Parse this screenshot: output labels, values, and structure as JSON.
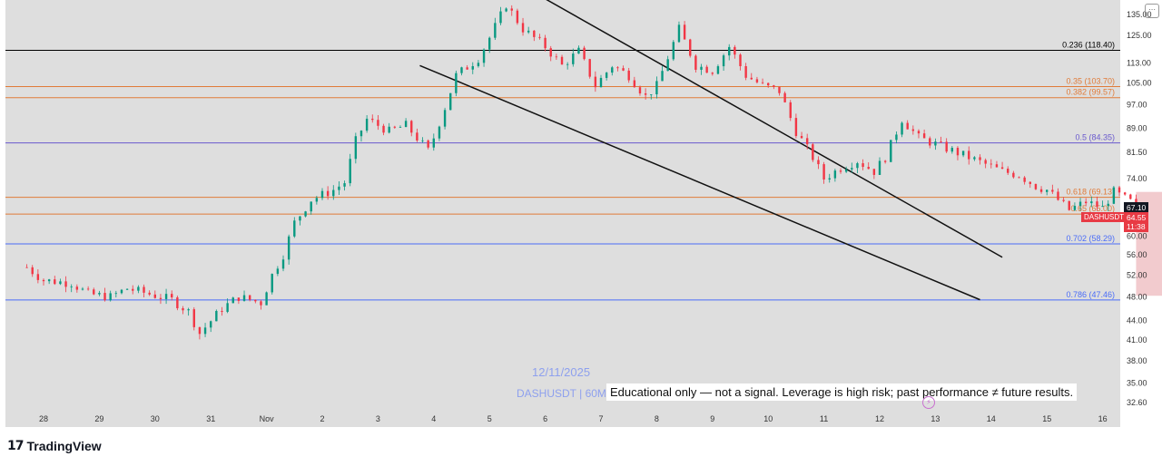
{
  "brand": {
    "name": "TradingView",
    "logo_text": "17"
  },
  "watermark": {
    "date": "12/11/2025",
    "symbol": "DASHUSDT | 60M"
  },
  "disclaimer": "Educational only — not a signal. Leverage is high risk; past performance ≠ future results.",
  "price_tags": {
    "last_price": "67.10",
    "current_price": "64.55",
    "countdown": "11:38",
    "symbol": "DASHUSDT"
  },
  "icons": {
    "more": "more-icon",
    "alert": "bolt-icon",
    "logo": "tradingview-logo-icon"
  },
  "chart_data": {
    "type": "candlestick",
    "symbol": "DASHUSDT",
    "timeframe": "60M",
    "x_tick_labels": [
      "28",
      "29",
      "30",
      "31",
      "Nov",
      "2",
      "3",
      "4",
      "5",
      "6",
      "7",
      "8",
      "9",
      "10",
      "11",
      "12",
      "13",
      "14",
      "15",
      "16"
    ],
    "y_tick_labels": [
      "135.00",
      "125.00",
      "113.00",
      "105.00",
      "97.00",
      "89.00",
      "81.50",
      "74.00",
      "67.00",
      "60.00",
      "56.00",
      "52.00",
      "48.00",
      "44.00",
      "41.00",
      "38.00",
      "35.00",
      "32.60"
    ],
    "y_scale": "log",
    "fib_levels": [
      {
        "label": "0.236 (118.40)",
        "price": 118.4,
        "color": "#000000"
      },
      {
        "label": "0.35 (103.70)",
        "price": 103.7,
        "color": "#e07b39"
      },
      {
        "label": "0.382 (99.57)",
        "price": 99.57,
        "color": "#e07b39"
      },
      {
        "label": "0.5 (84.35)",
        "price": 84.35,
        "color": "#6a5acd"
      },
      {
        "label": "0.618 (69.13)",
        "price": 69.13,
        "color": "#e07b39"
      },
      {
        "label": "0.65 (65.00)",
        "price": 65.0,
        "color": "#e07b39"
      },
      {
        "label": "0.702 (58.29)",
        "price": 58.29,
        "color": "#4a6cf7"
      },
      {
        "label": "0.786 (47.46)",
        "price": 47.46,
        "color": "#4a6cf7"
      }
    ],
    "trend_channel": {
      "upper": [
        {
          "date": "Nov 5.7",
          "price": 148
        },
        {
          "date": "Nov 14.2",
          "price": 55.5
        }
      ],
      "lower": [
        {
          "date": "Nov 3.75",
          "price": 112
        },
        {
          "date": "Nov 13.8",
          "price": 47.5
        }
      ]
    },
    "target_zone": {
      "from": "Nov 12.6",
      "to": "Nov 13.75",
      "top": 70.5,
      "bottom": 48.2
    },
    "price_path": [
      {
        "d": 27.7,
        "p": 53.5
      },
      {
        "d": 28.0,
        "p": 51.0
      },
      {
        "d": 28.5,
        "p": 50.5
      },
      {
        "d": 28.8,
        "p": 48.5
      },
      {
        "d": 29.2,
        "p": 48.0
      },
      {
        "d": 29.5,
        "p": 49.5
      },
      {
        "d": 29.9,
        "p": 48.5
      },
      {
        "d": 30.3,
        "p": 47.5
      },
      {
        "d": 30.6,
        "p": 45.5
      },
      {
        "d": 30.8,
        "p": 42.0
      },
      {
        "d": 31.2,
        "p": 46.0
      },
      {
        "d": 31.5,
        "p": 48.0
      },
      {
        "d": 31.9,
        "p": 47.0
      },
      {
        "d": 32.1,
        "p": 52.0
      },
      {
        "d": 32.3,
        "p": 56.0
      },
      {
        "d": 32.5,
        "p": 63.0
      },
      {
        "d": 32.8,
        "p": 68.5
      },
      {
        "d": 33.2,
        "p": 71.0
      },
      {
        "d": 33.4,
        "p": 73.0
      },
      {
        "d": 33.6,
        "p": 85.0
      },
      {
        "d": 33.8,
        "p": 92.0
      },
      {
        "d": 34.2,
        "p": 88.0
      },
      {
        "d": 34.5,
        "p": 90.0
      },
      {
        "d": 34.9,
        "p": 82.0
      },
      {
        "d": 35.0,
        "p": 86.0
      },
      {
        "d": 35.2,
        "p": 96.0
      },
      {
        "d": 35.4,
        "p": 108.0
      },
      {
        "d": 35.8,
        "p": 115.0
      },
      {
        "d": 36.0,
        "p": 124.0
      },
      {
        "d": 36.3,
        "p": 140.0
      },
      {
        "d": 36.6,
        "p": 128.0
      },
      {
        "d": 37.0,
        "p": 120.0
      },
      {
        "d": 37.3,
        "p": 112.0
      },
      {
        "d": 37.6,
        "p": 118.0
      },
      {
        "d": 37.9,
        "p": 104.0
      },
      {
        "d": 38.2,
        "p": 112.0
      },
      {
        "d": 38.5,
        "p": 108.0
      },
      {
        "d": 38.8,
        "p": 100.0
      },
      {
        "d": 39.0,
        "p": 104.0
      },
      {
        "d": 39.4,
        "p": 128.0
      },
      {
        "d": 39.7,
        "p": 112.0
      },
      {
        "d": 40.0,
        "p": 110.0
      },
      {
        "d": 40.3,
        "p": 120.0
      },
      {
        "d": 40.6,
        "p": 108.0
      },
      {
        "d": 40.9,
        "p": 104.0
      },
      {
        "d": 41.2,
        "p": 102.0
      },
      {
        "d": 41.5,
        "p": 88.0
      },
      {
        "d": 41.8,
        "p": 80.0
      },
      {
        "d": 42.0,
        "p": 74.0
      },
      {
        "d": 42.3,
        "p": 77.0
      },
      {
        "d": 42.6,
        "p": 79.0
      },
      {
        "d": 42.9,
        "p": 76.0
      },
      {
        "d": 43.1,
        "p": 80.0
      },
      {
        "d": 43.4,
        "p": 92.0
      },
      {
        "d": 43.7,
        "p": 86.0
      },
      {
        "d": 44.0,
        "p": 84.0
      },
      {
        "d": 44.3,
        "p": 82.0
      },
      {
        "d": 44.6,
        "p": 80.0
      },
      {
        "d": 44.9,
        "p": 78.0
      },
      {
        "d": 45.2,
        "p": 76.0
      },
      {
        "d": 45.5,
        "p": 75.0
      },
      {
        "d": 45.8,
        "p": 72.0
      },
      {
        "d": 46.0,
        "p": 71.0
      },
      {
        "d": 46.4,
        "p": 66.0
      },
      {
        "d": 46.7,
        "p": 68.0
      },
      {
        "d": 47.0,
        "p": 66.5
      },
      {
        "d": 47.2,
        "p": 70.5
      },
      {
        "d": 47.5,
        "p": 68.0
      },
      {
        "d": 47.65,
        "p": 64.55
      }
    ]
  }
}
